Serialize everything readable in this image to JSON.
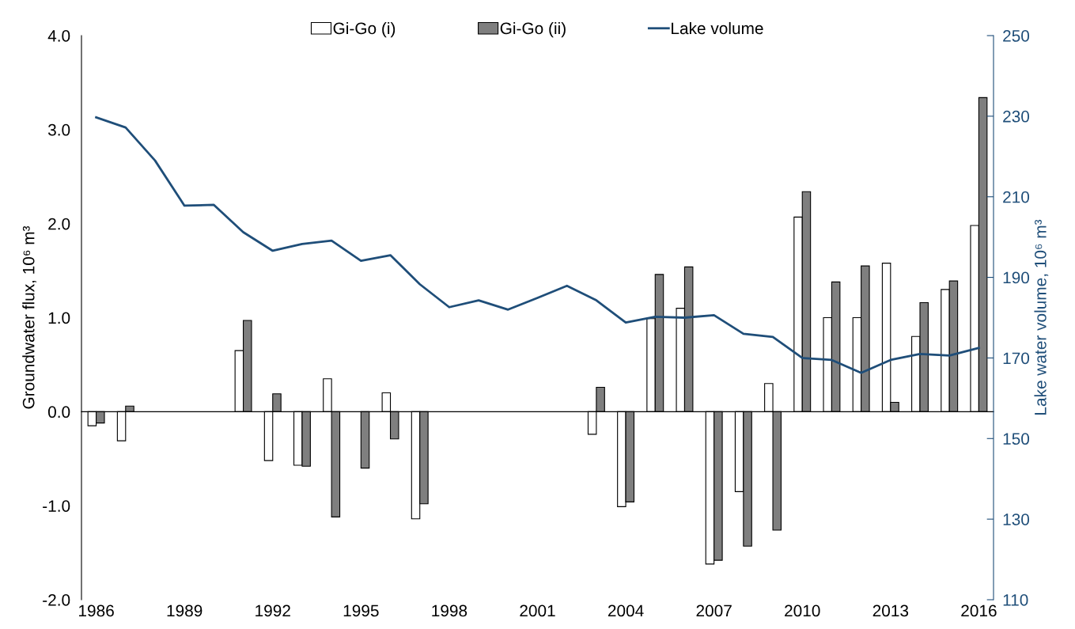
{
  "chart_data": {
    "type": "bar",
    "ylabel": "Groundwater flux, 10⁶ m³",
    "y2label": "Lake water volume, 10⁶ m³",
    "categories": [
      "1986",
      null,
      null,
      "1989",
      null,
      null,
      "1992",
      null,
      null,
      "1995",
      null,
      null,
      "1998",
      null,
      null,
      "2001",
      null,
      null,
      "2004",
      null,
      null,
      "2007",
      null,
      null,
      "2010",
      null,
      null,
      "2013",
      null,
      null,
      "2016"
    ],
    "series": [
      {
        "name": "Gi-Go (i)",
        "color": "#ffffff",
        "values": [
          -0.15,
          -0.31,
          null,
          null,
          null,
          0.65,
          -0.52,
          -0.57,
          0.35,
          null,
          0.2,
          -1.14,
          null,
          null,
          null,
          null,
          null,
          -0.24,
          -1.01,
          0.99,
          1.1,
          -1.62,
          -0.85,
          0.3,
          2.07,
          1.0,
          1.0,
          1.58,
          0.8,
          1.3,
          1.98
        ]
      },
      {
        "name": "Gi-Go (ii)",
        "color": "#7f7f7f",
        "values": [
          -0.12,
          0.06,
          null,
          null,
          null,
          0.97,
          0.19,
          -0.58,
          -1.12,
          -0.6,
          -0.29,
          -0.98,
          null,
          null,
          null,
          null,
          null,
          0.26,
          -0.96,
          1.46,
          1.54,
          -1.58,
          -1.43,
          -1.26,
          2.34,
          1.38,
          1.55,
          0.1,
          1.16,
          1.39,
          3.34
        ]
      },
      {
        "name": "Lake volume",
        "type": "line",
        "axis": "y2",
        "color": "#1f4e79",
        "values": [
          229.7,
          227.2,
          219.0,
          207.8,
          208.0,
          201.2,
          196.6,
          198.3,
          199.1,
          194.1,
          195.5,
          188.3,
          182.6,
          184.3,
          182.0,
          184.9,
          187.9,
          184.3,
          178.8,
          180.2,
          180.0,
          180.6,
          176.0,
          175.2,
          170.0,
          169.5,
          166.3,
          169.5,
          171.0,
          170.6,
          172.5
        ]
      }
    ],
    "ylim": [
      -2,
      4
    ],
    "yticks": [
      {
        "value": -2,
        "label": "-2.0"
      },
      {
        "value": -1,
        "label": "-1.0"
      },
      {
        "value": 0,
        "label": "0.0"
      },
      {
        "value": 1,
        "label": "1.0"
      },
      {
        "value": 2,
        "label": "2.0"
      },
      {
        "value": 3,
        "label": "3.0"
      },
      {
        "value": 4,
        "label": "4.0"
      }
    ],
    "y2lim": [
      110,
      250
    ],
    "y2ticks": [
      110,
      130,
      150,
      170,
      190,
      210,
      230,
      250
    ],
    "legend": "top",
    "marker": "none",
    "line_style": "solid"
  }
}
